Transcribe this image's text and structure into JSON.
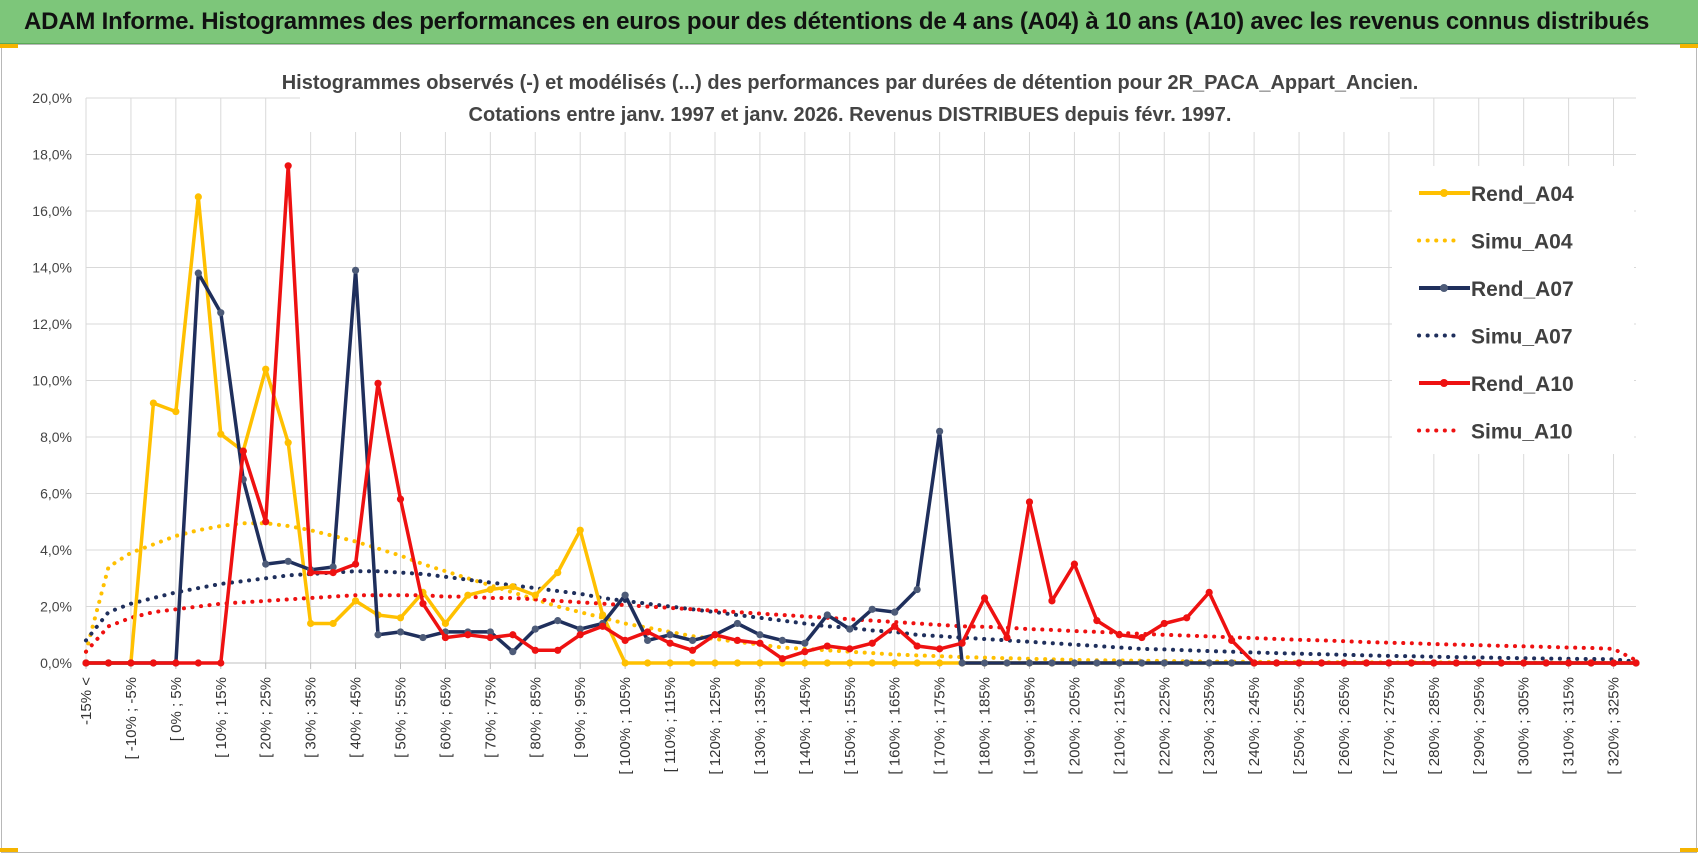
{
  "header": {
    "title": "ADAM Informe. Histogrammes des performances en euros pour des détentions de 4 ans (A04) à 10 ans (A10) avec les revenus connus distribués"
  },
  "chart_data": {
    "type": "line",
    "title_line1": "Histogrammes observés (-) et modélisés (...) des performances par durées de détention pour 2R_PACA_Appart_Ancien.",
    "title_line2": "Cotations entre janv. 1997 et janv. 2026. Revenus DISTRIBUES depuis févr. 1997.",
    "xlabel": "",
    "ylabel": "",
    "ylim": [
      0,
      20
    ],
    "y_ticks": [
      "0,0%",
      "2,0%",
      "4,0%",
      "6,0%",
      "8,0%",
      "10,0%",
      "12,0%",
      "14,0%",
      "16,0%",
      "18,0%",
      "20,0%"
    ],
    "x_tick_labels": [
      "-15% <",
      "[ -10% ; -5%",
      "[ 0% ; 5%",
      "[ 10% ; 15%",
      "[ 20% ; 25%",
      "[ 30% ; 35%",
      "[ 40% ; 45%",
      "[ 50% ; 55%",
      "[ 60% ; 65%",
      "[ 70% ; 75%",
      "[ 80% ; 85%",
      "[ 90% ; 95%",
      "[ 100% ; 105%",
      "[ 110% ; 115%",
      "[ 120% ; 125%",
      "[ 130% ; 135%",
      "[ 140% ; 145%",
      "[ 150% ; 155%",
      "[ 160% ; 165%",
      "[ 170% ; 175%",
      "[ 180% ; 185%",
      "[ 190% ; 195%",
      "[ 200% ; 205%",
      "[ 210% ; 215%",
      "[ 220% ; 225%",
      "[ 230% ; 235%",
      "[ 240% ; 245%",
      "[ 250% ; 255%",
      "[ 260% ; 265%",
      "[ 270% ; 275%",
      "[ 280% ; 285%",
      "[ 290% ; 295%",
      "[ 300% ; 305%",
      "[ 310% ; 315%",
      "[ 320% ; 325%"
    ],
    "grid": true,
    "legend_position": "right",
    "series": [
      {
        "name": "Rend_A04",
        "style": "solid",
        "color": "#ffc000",
        "values": [
          0,
          0,
          0,
          9.2,
          8.9,
          16.5,
          8.1,
          7.5,
          10.4,
          7.8,
          1.4,
          1.4,
          2.2,
          1.7,
          1.6,
          2.5,
          1.4,
          2.4,
          2.6,
          2.7,
          2.4,
          3.2,
          4.7,
          1.7,
          0,
          0,
          0,
          0,
          0,
          0,
          0,
          0,
          0,
          0,
          0,
          0,
          0,
          0,
          0,
          0,
          0,
          0,
          0,
          0,
          0,
          0,
          0,
          0,
          0,
          0,
          0,
          0,
          0,
          0,
          0,
          0,
          0,
          0,
          0,
          0,
          0,
          0,
          0,
          0,
          0,
          0,
          0,
          0,
          0,
          0
        ]
      },
      {
        "name": "Simu_A04",
        "style": "dotted",
        "color": "#ffc000",
        "values": [
          0.4,
          3.4,
          3.9,
          4.2,
          4.5,
          4.7,
          4.85,
          4.95,
          4.95,
          4.85,
          4.7,
          4.5,
          4.3,
          4.05,
          3.8,
          3.5,
          3.25,
          3.0,
          2.75,
          2.5,
          2.25,
          2.0,
          1.8,
          1.6,
          1.4,
          1.25,
          1.1,
          0.95,
          0.85,
          0.75,
          0.65,
          0.55,
          0.5,
          0.45,
          0.4,
          0.35,
          0.3,
          0.27,
          0.24,
          0.21,
          0.19,
          0.17,
          0.15,
          0.13,
          0.11,
          0.1,
          0.09,
          0.08,
          0.07,
          0.06,
          0.05,
          0.05,
          0.04,
          0.04,
          0.03,
          0.03,
          0.03,
          0.02,
          0.02,
          0.02,
          0.02,
          0.02,
          0.01,
          0.01,
          0.01,
          0.01,
          0.01,
          0.01,
          0.01,
          0
        ]
      },
      {
        "name": "Rend_A07",
        "style": "solid",
        "color": "#1f2f5c",
        "values": [
          0,
          0,
          0,
          0,
          0,
          13.8,
          12.4,
          6.5,
          3.5,
          3.6,
          3.3,
          3.4,
          13.9,
          1.0,
          1.1,
          0.9,
          1.1,
          1.1,
          1.1,
          0.4,
          1.2,
          1.5,
          1.2,
          1.4,
          2.4,
          0.8,
          1.0,
          0.8,
          1.0,
          1.4,
          1.0,
          0.8,
          0.7,
          1.7,
          1.2,
          1.9,
          1.8,
          2.6,
          8.2,
          0,
          0,
          0,
          0,
          0,
          0,
          0,
          0,
          0,
          0,
          0,
          0,
          0,
          0,
          0,
          0,
          0,
          0,
          0,
          0,
          0,
          0,
          0,
          0,
          0,
          0,
          0,
          0,
          0,
          0,
          0
        ]
      },
      {
        "name": "Simu_A07",
        "style": "dotted",
        "color": "#1f2f5c",
        "values": [
          0.8,
          1.8,
          2.1,
          2.3,
          2.5,
          2.65,
          2.8,
          2.9,
          3.0,
          3.1,
          3.15,
          3.2,
          3.25,
          3.25,
          3.2,
          3.15,
          3.05,
          2.95,
          2.85,
          2.75,
          2.65,
          2.55,
          2.45,
          2.3,
          2.2,
          2.1,
          2.0,
          1.9,
          1.8,
          1.7,
          1.6,
          1.5,
          1.4,
          1.3,
          1.25,
          1.15,
          1.1,
          1.0,
          0.95,
          0.9,
          0.85,
          0.8,
          0.75,
          0.7,
          0.65,
          0.6,
          0.55,
          0.5,
          0.48,
          0.45,
          0.42,
          0.4,
          0.37,
          0.35,
          0.33,
          0.31,
          0.29,
          0.27,
          0.25,
          0.24,
          0.22,
          0.21,
          0.2,
          0.18,
          0.17,
          0.16,
          0.15,
          0.14,
          0.13,
          0.05
        ]
      },
      {
        "name": "Rend_A10",
        "style": "solid",
        "color": "#ee1111",
        "values": [
          0,
          0,
          0,
          0,
          0,
          0,
          0,
          7.5,
          5.0,
          17.6,
          3.2,
          3.2,
          3.5,
          9.9,
          5.8,
          2.1,
          0.9,
          1.0,
          0.9,
          1.0,
          0.45,
          0.45,
          1.0,
          1.3,
          0.8,
          1.1,
          0.7,
          0.45,
          1.0,
          0.8,
          0.7,
          0.15,
          0.4,
          0.6,
          0.5,
          0.7,
          1.3,
          0.6,
          0.5,
          0.7,
          2.3,
          0.9,
          5.7,
          2.2,
          3.5,
          1.5,
          1.0,
          0.9,
          1.4,
          1.6,
          2.5,
          0.8,
          0,
          0,
          0,
          0,
          0,
          0,
          0,
          0,
          0,
          0,
          0,
          0,
          0,
          0,
          0,
          0,
          0,
          0
        ]
      },
      {
        "name": "Simu_A10",
        "style": "dotted",
        "color": "#ee1111",
        "values": [
          0.4,
          1.3,
          1.6,
          1.8,
          1.9,
          2.0,
          2.1,
          2.15,
          2.2,
          2.25,
          2.3,
          2.35,
          2.4,
          2.4,
          2.4,
          2.4,
          2.35,
          2.35,
          2.3,
          2.3,
          2.25,
          2.2,
          2.15,
          2.1,
          2.05,
          2.0,
          1.95,
          1.9,
          1.85,
          1.8,
          1.75,
          1.7,
          1.65,
          1.6,
          1.55,
          1.5,
          1.45,
          1.4,
          1.35,
          1.3,
          1.28,
          1.25,
          1.2,
          1.17,
          1.13,
          1.1,
          1.07,
          1.03,
          1.0,
          0.97,
          0.94,
          0.91,
          0.88,
          0.85,
          0.82,
          0.8,
          0.77,
          0.74,
          0.72,
          0.7,
          0.67,
          0.65,
          0.63,
          0.61,
          0.59,
          0.57,
          0.55,
          0.53,
          0.5,
          0.1
        ]
      }
    ]
  }
}
